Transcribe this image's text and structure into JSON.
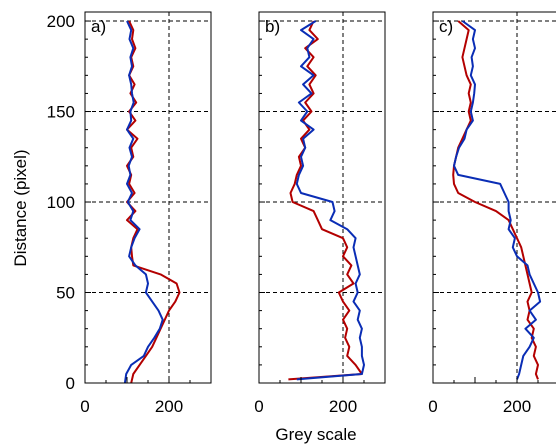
{
  "chart_data": {
    "type": "line",
    "xlabel": "Grey scale",
    "ylabel": "Distance (pixel)",
    "xlim": [
      0,
      300
    ],
    "ylim": [
      0,
      205
    ],
    "xticks": [
      0,
      200
    ],
    "yticks": [
      0,
      50,
      100,
      150,
      200
    ],
    "grid": "dashed lines at x=200 and y=50,100,150,200",
    "colors": {
      "red": "#b30000",
      "blue": "#0a2db5"
    },
    "panels": [
      {
        "label": "a)",
        "series": [
          {
            "color": "#b30000",
            "y": [
              0,
              5,
              10,
              15,
              20,
              25,
              30,
              35,
              40,
              45,
              50,
              55,
              60,
              65,
              70,
              75,
              80,
              85,
              90,
              95,
              100,
              105,
              110,
              115,
              120,
              125,
              130,
              135,
              140,
              145,
              150,
              155,
              160,
              165,
              170,
              175,
              180,
              185,
              190,
              195,
              200
            ],
            "x": [
              110,
              115,
              130,
              145,
              160,
              170,
              180,
              190,
              200,
              215,
              225,
              218,
              180,
              115,
              112,
              110,
              115,
              125,
              100,
              120,
              100,
              118,
              105,
              110,
              100,
              115,
              110,
              125,
              100,
              120,
              105,
              122,
              108,
              118,
              105,
              115,
              110,
              120,
              112,
              115,
              105
            ]
          },
          {
            "color": "#0a2db5",
            "y": [
              0,
              5,
              10,
              15,
              20,
              25,
              30,
              35,
              40,
              45,
              50,
              55,
              60,
              65,
              70,
              75,
              80,
              85,
              90,
              95,
              100,
              105,
              110,
              115,
              120,
              125,
              130,
              135,
              140,
              145,
              150,
              155,
              160,
              165,
              170,
              175,
              180,
              185,
              190,
              195,
              200
            ],
            "x": [
              95,
              98,
              110,
              140,
              150,
              165,
              178,
              185,
              175,
              160,
              145,
              150,
              145,
              120,
              105,
              110,
              118,
              130,
              108,
              115,
              102,
              112,
              100,
              108,
              104,
              112,
              106,
              115,
              100,
              110,
              108,
              116,
              112,
              110,
              105,
              112,
              108,
              115,
              106,
              110,
              100
            ]
          }
        ]
      },
      {
        "label": "b)",
        "series": [
          {
            "color": "#b30000",
            "y": [
              2,
              5,
              10,
              15,
              20,
              25,
              30,
              35,
              40,
              45,
              50,
              55,
              60,
              65,
              70,
              75,
              80,
              85,
              90,
              95,
              100,
              105,
              110,
              115,
              120,
              125,
              130,
              135,
              140,
              145,
              150,
              155,
              160,
              165,
              170,
              175,
              180,
              185,
              190,
              195,
              200
            ],
            "x": [
              70,
              245,
              230,
              210,
              215,
              205,
              210,
              200,
              215,
              200,
              190,
              225,
              210,
              220,
              200,
              210,
              200,
              150,
              140,
              130,
              80,
              75,
              85,
              90,
              100,
              95,
              110,
              100,
              120,
              105,
              125,
              110,
              130,
              120,
              135,
              115,
              130,
              110,
              140,
              120,
              130
            ]
          },
          {
            "color": "#0a2db5",
            "y": [
              2,
              5,
              10,
              15,
              20,
              25,
              30,
              35,
              40,
              45,
              50,
              55,
              60,
              65,
              70,
              75,
              80,
              85,
              90,
              95,
              100,
              105,
              110,
              115,
              120,
              125,
              130,
              135,
              140,
              145,
              150,
              155,
              160,
              165,
              170,
              175,
              180,
              185,
              190,
              195,
              200
            ],
            "x": [
              90,
              245,
              250,
              245,
              245,
              240,
              245,
              235,
              240,
              225,
              235,
              230,
              240,
              235,
              230,
              225,
              230,
              210,
              170,
              180,
              175,
              100,
              90,
              95,
              105,
              100,
              110,
              105,
              130,
              100,
              115,
              95,
              125,
              105,
              130,
              100,
              120,
              115,
              130,
              100,
              135
            ]
          }
        ]
      },
      {
        "label": "c)",
        "series": [
          {
            "color": "#b30000",
            "y": [
              2,
              5,
              10,
              15,
              20,
              25,
              30,
              35,
              40,
              45,
              50,
              55,
              60,
              65,
              70,
              75,
              80,
              85,
              90,
              95,
              100,
              105,
              110,
              115,
              120,
              125,
              130,
              135,
              140,
              145,
              150,
              155,
              160,
              165,
              170,
              175,
              180,
              185,
              190,
              195,
              200
            ],
            "x": [
              250,
              245,
              250,
              240,
              245,
              235,
              240,
              225,
              230,
              225,
              235,
              230,
              225,
              220,
              215,
              210,
              200,
              190,
              180,
              150,
              100,
              60,
              50,
              48,
              50,
              55,
              60,
              70,
              80,
              90,
              85,
              90,
              85,
              90,
              80,
              75,
              70,
              75,
              80,
              85,
              60
            ]
          },
          {
            "color": "#0a2db5",
            "y": [
              2,
              5,
              10,
              15,
              20,
              25,
              30,
              35,
              40,
              45,
              50,
              55,
              60,
              65,
              70,
              75,
              80,
              85,
              90,
              95,
              100,
              105,
              110,
              115,
              120,
              125,
              130,
              135,
              140,
              145,
              150,
              155,
              160,
              165,
              170,
              175,
              180,
              185,
              190,
              195,
              200
            ],
            "x": [
              200,
              205,
              210,
              215,
              230,
              240,
              220,
              245,
              230,
              255,
              250,
              240,
              230,
              225,
              200,
              190,
              195,
              180,
              185,
              180,
              180,
              170,
              160,
              60,
              50,
              55,
              62,
              75,
              80,
              95,
              90,
              95,
              98,
              100,
              90,
              95,
              92,
              100,
              95,
              100,
              70
            ]
          }
        ]
      }
    ]
  }
}
